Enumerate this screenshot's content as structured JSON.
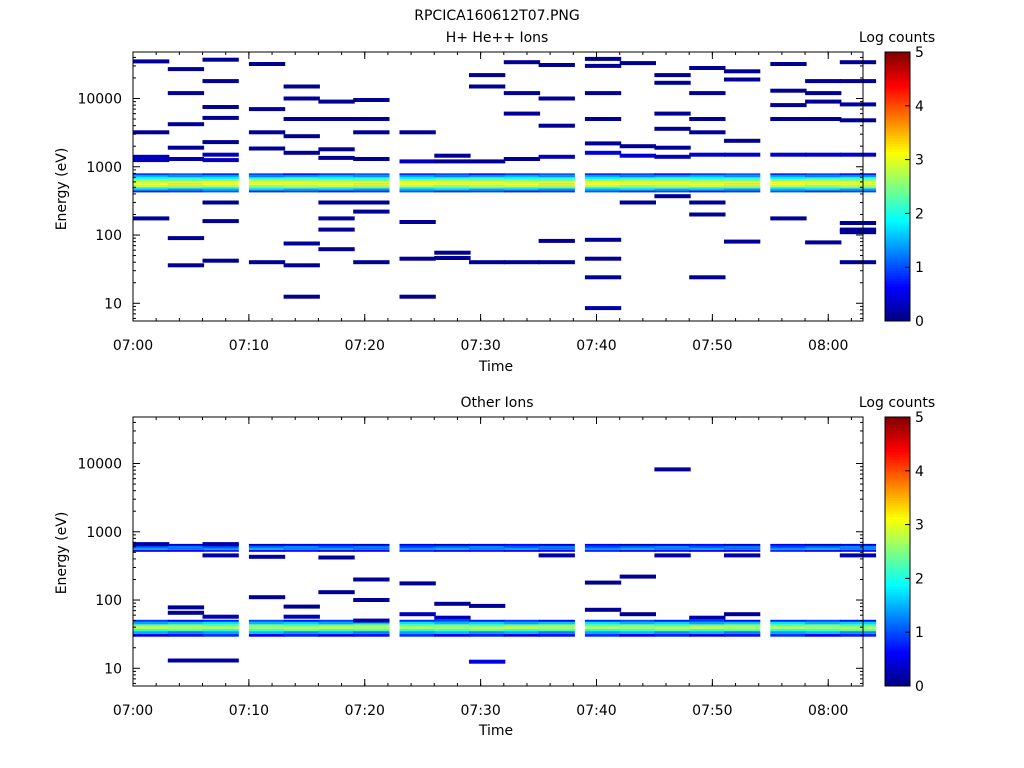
{
  "figure": {
    "title": "RPCICA160612T07.PNG"
  },
  "chart_data": [
    {
      "type": "heatmap",
      "title": "H+ He++ Ions",
      "xlabel": "Time",
      "ylabel": "Energy (eV)",
      "x_range": [
        "07:00",
        "08:03"
      ],
      "x_ticks": [
        "07:00",
        "07:10",
        "07:20",
        "07:30",
        "07:40",
        "07:50",
        "08:00"
      ],
      "y_scale": "log",
      "y_range": [
        5.5,
        48000
      ],
      "y_ticks": [
        10,
        100,
        1000,
        10000
      ],
      "y_tick_labels": [
        "10",
        "100",
        "1000",
        "10000"
      ],
      "colorbar": {
        "label": "Log counts",
        "range": [
          0,
          5
        ],
        "ticks": [
          "0",
          "1",
          "2",
          "3",
          "4",
          "5"
        ]
      },
      "columns": [
        "07:00",
        "07:03",
        "07:06",
        "07:10",
        "07:13",
        "07:16",
        "07:19",
        "07:23",
        "07:26",
        "07:29",
        "07:32",
        "07:35",
        "07:39",
        "07:42",
        "07:45",
        "07:48",
        "07:51",
        "07:55",
        "07:58",
        "08:01"
      ],
      "core_band": {
        "energies": [
          420,
          450,
          480,
          510,
          545,
          580,
          620,
          660,
          700,
          750
        ],
        "values": [
          0.9,
          1.5,
          2.2,
          2.7,
          3.1,
          3.0,
          2.6,
          2.0,
          1.4,
          0.9
        ]
      },
      "sparse_cells": [
        {
          "t": "07:00",
          "energy": 35000,
          "value": 0.1
        },
        {
          "t": "07:00",
          "energy": 3200,
          "value": 0.1
        },
        {
          "t": "07:00",
          "energy": 1400,
          "value": 0.3
        },
        {
          "t": "07:00",
          "energy": 1250,
          "value": 0.3
        },
        {
          "t": "07:00",
          "energy": 175,
          "value": 0.1
        },
        {
          "t": "07:03",
          "energy": 27000,
          "value": 0.1
        },
        {
          "t": "07:03",
          "energy": 12000,
          "value": 0.1
        },
        {
          "t": "07:03",
          "energy": 4200,
          "value": 0.1
        },
        {
          "t": "07:03",
          "energy": 1900,
          "value": 0.1
        },
        {
          "t": "07:03",
          "energy": 1300,
          "value": 0.2
        },
        {
          "t": "07:03",
          "energy": 90,
          "value": 0.1
        },
        {
          "t": "07:03",
          "energy": 36,
          "value": 0.1
        },
        {
          "t": "07:06",
          "energy": 37000,
          "value": 0.1
        },
        {
          "t": "07:06",
          "energy": 18000,
          "value": 0.1
        },
        {
          "t": "07:06",
          "energy": 7500,
          "value": 0.1
        },
        {
          "t": "07:06",
          "energy": 5200,
          "value": 0.1
        },
        {
          "t": "07:06",
          "energy": 2300,
          "value": 0.1
        },
        {
          "t": "07:06",
          "energy": 1500,
          "value": 0.3
        },
        {
          "t": "07:06",
          "energy": 1250,
          "value": 0.3
        },
        {
          "t": "07:06",
          "energy": 300,
          "value": 0.1
        },
        {
          "t": "07:06",
          "energy": 160,
          "value": 0.1
        },
        {
          "t": "07:06",
          "energy": 42,
          "value": 0.1
        },
        {
          "t": "07:10",
          "energy": 32000,
          "value": 0.1
        },
        {
          "t": "07:10",
          "energy": 7000,
          "value": 0.1
        },
        {
          "t": "07:10",
          "energy": 3200,
          "value": 0.1
        },
        {
          "t": "07:10",
          "energy": 1850,
          "value": 0.1
        },
        {
          "t": "07:10",
          "energy": 40,
          "value": 0.1
        },
        {
          "t": "07:13",
          "energy": 15000,
          "value": 0.1
        },
        {
          "t": "07:13",
          "energy": 10000,
          "value": 0.1
        },
        {
          "t": "07:13",
          "energy": 5000,
          "value": 0.1
        },
        {
          "t": "07:13",
          "energy": 2800,
          "value": 0.1
        },
        {
          "t": "07:13",
          "energy": 1600,
          "value": 0.1
        },
        {
          "t": "07:13",
          "energy": 75,
          "value": 0.1
        },
        {
          "t": "07:13",
          "energy": 36,
          "value": 0.1
        },
        {
          "t": "07:13",
          "energy": 12.5,
          "value": 0.1
        },
        {
          "t": "07:16",
          "energy": 9000,
          "value": 0.1
        },
        {
          "t": "07:16",
          "energy": 5000,
          "value": 0.1
        },
        {
          "t": "07:16",
          "energy": 1800,
          "value": 0.1
        },
        {
          "t": "07:16",
          "energy": 1350,
          "value": 0.1
        },
        {
          "t": "07:16",
          "energy": 300,
          "value": 0.1
        },
        {
          "t": "07:16",
          "energy": 175,
          "value": 0.1
        },
        {
          "t": "07:16",
          "energy": 120,
          "value": 0.1
        },
        {
          "t": "07:16",
          "energy": 62,
          "value": 0.1
        },
        {
          "t": "07:19",
          "energy": 9500,
          "value": 0.1
        },
        {
          "t": "07:19",
          "energy": 5000,
          "value": 0.1
        },
        {
          "t": "07:19",
          "energy": 3200,
          "value": 0.1
        },
        {
          "t": "07:19",
          "energy": 1300,
          "value": 0.1
        },
        {
          "t": "07:19",
          "energy": 300,
          "value": 0.1
        },
        {
          "t": "07:19",
          "energy": 220,
          "value": 0.1
        },
        {
          "t": "07:19",
          "energy": 40,
          "value": 0.1
        },
        {
          "t": "07:23",
          "energy": 3200,
          "value": 0.1
        },
        {
          "t": "07:23",
          "energy": 1200,
          "value": 0.3
        },
        {
          "t": "07:23",
          "energy": 155,
          "value": 0.1
        },
        {
          "t": "07:23",
          "energy": 45,
          "value": 0.1
        },
        {
          "t": "07:23",
          "energy": 12.5,
          "value": 0.1
        },
        {
          "t": "07:26",
          "energy": 1450,
          "value": 0.1
        },
        {
          "t": "07:26",
          "energy": 1200,
          "value": 0.1
        },
        {
          "t": "07:26",
          "energy": 55,
          "value": 0.1
        },
        {
          "t": "07:26",
          "energy": 46,
          "value": 0.1
        },
        {
          "t": "07:29",
          "energy": 22000,
          "value": 0.1
        },
        {
          "t": "07:29",
          "energy": 15000,
          "value": 0.1
        },
        {
          "t": "07:29",
          "energy": 1200,
          "value": 0.1
        },
        {
          "t": "07:29",
          "energy": 40,
          "value": 0.1
        },
        {
          "t": "07:32",
          "energy": 34000,
          "value": 0.1
        },
        {
          "t": "07:32",
          "energy": 12000,
          "value": 0.1
        },
        {
          "t": "07:32",
          "energy": 6000,
          "value": 0.1
        },
        {
          "t": "07:32",
          "energy": 1300,
          "value": 0.1
        },
        {
          "t": "07:32",
          "energy": 40,
          "value": 0.1
        },
        {
          "t": "07:35",
          "energy": 31000,
          "value": 0.1
        },
        {
          "t": "07:35",
          "energy": 10000,
          "value": 0.1
        },
        {
          "t": "07:35",
          "energy": 4000,
          "value": 0.1
        },
        {
          "t": "07:35",
          "energy": 1400,
          "value": 0.3
        },
        {
          "t": "07:35",
          "energy": 82,
          "value": 0.1
        },
        {
          "t": "07:35",
          "energy": 40,
          "value": 0.1
        },
        {
          "t": "07:39",
          "energy": 38000,
          "value": 0.1
        },
        {
          "t": "07:39",
          "energy": 30000,
          "value": 0.1
        },
        {
          "t": "07:39",
          "energy": 12000,
          "value": 0.1
        },
        {
          "t": "07:39",
          "energy": 5000,
          "value": 0.1
        },
        {
          "t": "07:39",
          "energy": 2200,
          "value": 0.1
        },
        {
          "t": "07:39",
          "energy": 1600,
          "value": 0.5
        },
        {
          "t": "07:39",
          "energy": 85,
          "value": 0.1
        },
        {
          "t": "07:39",
          "energy": 45,
          "value": 0.1
        },
        {
          "t": "07:39",
          "energy": 24,
          "value": 0.1
        },
        {
          "t": "07:39",
          "energy": 8.5,
          "value": 0.2
        },
        {
          "t": "07:42",
          "energy": 33000,
          "value": 0.1
        },
        {
          "t": "07:42",
          "energy": 2000,
          "value": 0.1
        },
        {
          "t": "07:42",
          "energy": 1450,
          "value": 0.4
        },
        {
          "t": "07:42",
          "energy": 300,
          "value": 0.1
        },
        {
          "t": "07:45",
          "energy": 22000,
          "value": 0.1
        },
        {
          "t": "07:45",
          "energy": 17000,
          "value": 0.1
        },
        {
          "t": "07:45",
          "energy": 6000,
          "value": 0.1
        },
        {
          "t": "07:45",
          "energy": 3600,
          "value": 0.1
        },
        {
          "t": "07:45",
          "energy": 1900,
          "value": 0.1
        },
        {
          "t": "07:45",
          "energy": 1400,
          "value": 0.3
        },
        {
          "t": "07:45",
          "energy": 370,
          "value": 0.1
        },
        {
          "t": "07:48",
          "energy": 28000,
          "value": 0.1
        },
        {
          "t": "07:48",
          "energy": 12000,
          "value": 0.1
        },
        {
          "t": "07:48",
          "energy": 5000,
          "value": 0.1
        },
        {
          "t": "07:48",
          "energy": 3200,
          "value": 0.1
        },
        {
          "t": "07:48",
          "energy": 1500,
          "value": 0.4
        },
        {
          "t": "07:48",
          "energy": 300,
          "value": 0.1
        },
        {
          "t": "07:48",
          "energy": 200,
          "value": 0.1
        },
        {
          "t": "07:48",
          "energy": 24,
          "value": 0.1
        },
        {
          "t": "07:51",
          "energy": 25000,
          "value": 0.1
        },
        {
          "t": "07:51",
          "energy": 19000,
          "value": 0.1
        },
        {
          "t": "07:51",
          "energy": 2400,
          "value": 0.1
        },
        {
          "t": "07:51",
          "energy": 1500,
          "value": 0.4
        },
        {
          "t": "07:51",
          "energy": 80,
          "value": 0.1
        },
        {
          "t": "07:55",
          "energy": 32000,
          "value": 0.1
        },
        {
          "t": "07:55",
          "energy": 13000,
          "value": 0.1
        },
        {
          "t": "07:55",
          "energy": 8000,
          "value": 0.1
        },
        {
          "t": "07:55",
          "energy": 5000,
          "value": 0.1
        },
        {
          "t": "07:55",
          "energy": 1500,
          "value": 0.4
        },
        {
          "t": "07:55",
          "energy": 175,
          "value": 0.1
        },
        {
          "t": "07:58",
          "energy": 18000,
          "value": 0.1
        },
        {
          "t": "07:58",
          "energy": 12000,
          "value": 0.1
        },
        {
          "t": "07:58",
          "energy": 9000,
          "value": 0.1
        },
        {
          "t": "07:58",
          "energy": 5000,
          "value": 0.1
        },
        {
          "t": "07:58",
          "energy": 1500,
          "value": 0.4
        },
        {
          "t": "07:58",
          "energy": 78,
          "value": 0.1
        },
        {
          "t": "08:01",
          "energy": 34000,
          "value": 0.1
        },
        {
          "t": "08:01",
          "energy": 18000,
          "value": 0.1
        },
        {
          "t": "08:01",
          "energy": 8200,
          "value": 0.2
        },
        {
          "t": "08:01",
          "energy": 4800,
          "value": 0.1
        },
        {
          "t": "08:01",
          "energy": 1500,
          "value": 0.4
        },
        {
          "t": "08:01",
          "energy": 150,
          "value": 0.1
        },
        {
          "t": "08:01",
          "energy": 120,
          "value": 0.1
        },
        {
          "t": "08:01",
          "energy": 110,
          "value": 0.1
        },
        {
          "t": "08:01",
          "energy": 40,
          "value": 0.1
        }
      ]
    },
    {
      "type": "heatmap",
      "title": "Other Ions",
      "xlabel": "Time",
      "ylabel": "Energy (eV)",
      "x_range": [
        "07:00",
        "08:03"
      ],
      "x_ticks": [
        "07:00",
        "07:10",
        "07:20",
        "07:30",
        "07:40",
        "07:50",
        "08:00"
      ],
      "y_scale": "log",
      "y_range": [
        5.5,
        48000
      ],
      "y_ticks": [
        10,
        100,
        1000,
        10000
      ],
      "y_tick_labels": [
        "10",
        "100",
        "1000",
        "10000"
      ],
      "colorbar": {
        "label": "Log counts",
        "range": [
          0,
          5
        ],
        "ticks": [
          "0",
          "1",
          "2",
          "3",
          "4",
          "5"
        ]
      },
      "columns": [
        "07:00",
        "07:03",
        "07:06",
        "07:10",
        "07:13",
        "07:16",
        "07:19",
        "07:23",
        "07:26",
        "07:29",
        "07:32",
        "07:35",
        "07:39",
        "07:42",
        "07:45",
        "07:48",
        "07:51",
        "07:55",
        "07:58",
        "08:01"
      ],
      "core_bands": [
        {
          "energies": [
            510,
            545,
            580,
            620
          ],
          "values": [
            0.6,
            1.3,
            1.1,
            0.5
          ]
        },
        {
          "energies": [
            29,
            32,
            35,
            38,
            41,
            44,
            48
          ],
          "values": [
            0.7,
            1.4,
            2.2,
            2.8,
            2.4,
            1.6,
            0.8
          ]
        }
      ],
      "sparse_cells": [
        {
          "t": "07:00",
          "energy": 660,
          "value": 0.2
        },
        {
          "t": "07:03",
          "energy": 78,
          "value": 0.1
        },
        {
          "t": "07:03",
          "energy": 65,
          "value": 0.1
        },
        {
          "t": "07:03",
          "energy": 13,
          "value": 0.2
        },
        {
          "t": "07:06",
          "energy": 660,
          "value": 0.2
        },
        {
          "t": "07:06",
          "energy": 450,
          "value": 0.2
        },
        {
          "t": "07:06",
          "energy": 57,
          "value": 0.3
        },
        {
          "t": "07:06",
          "energy": 13,
          "value": 0.2
        },
        {
          "t": "07:10",
          "energy": 430,
          "value": 0.2
        },
        {
          "t": "07:10",
          "energy": 110,
          "value": 0.1
        },
        {
          "t": "07:13",
          "energy": 80,
          "value": 0.1
        },
        {
          "t": "07:13",
          "energy": 57,
          "value": 0.3
        },
        {
          "t": "07:16",
          "energy": 420,
          "value": 0.1
        },
        {
          "t": "07:16",
          "energy": 130,
          "value": 0.1
        },
        {
          "t": "07:19",
          "energy": 200,
          "value": 0.1
        },
        {
          "t": "07:19",
          "energy": 100,
          "value": 0.1
        },
        {
          "t": "07:19",
          "energy": 50,
          "value": 0.2
        },
        {
          "t": "07:23",
          "energy": 175,
          "value": 0.1
        },
        {
          "t": "07:23",
          "energy": 62,
          "value": 0.3
        },
        {
          "t": "07:26",
          "energy": 88,
          "value": 0.1
        },
        {
          "t": "07:26",
          "energy": 55,
          "value": 0.3
        },
        {
          "t": "07:29",
          "energy": 82,
          "value": 0.1
        },
        {
          "t": "07:29",
          "energy": 12.5,
          "value": 0.5
        },
        {
          "t": "07:35",
          "energy": 450,
          "value": 0.2
        },
        {
          "t": "07:39",
          "energy": 180,
          "value": 0.1
        },
        {
          "t": "07:39",
          "energy": 72,
          "value": 0.1
        },
        {
          "t": "07:42",
          "energy": 220,
          "value": 0.1
        },
        {
          "t": "07:42",
          "energy": 62,
          "value": 0.1
        },
        {
          "t": "07:45",
          "energy": 8200,
          "value": 0.1
        },
        {
          "t": "07:45",
          "energy": 450,
          "value": 0.2
        },
        {
          "t": "07:48",
          "energy": 55,
          "value": 0.2
        },
        {
          "t": "07:51",
          "energy": 450,
          "value": 0.2
        },
        {
          "t": "07:51",
          "energy": 62,
          "value": 0.1
        },
        {
          "t": "08:01",
          "energy": 450,
          "value": 0.2
        }
      ]
    }
  ]
}
